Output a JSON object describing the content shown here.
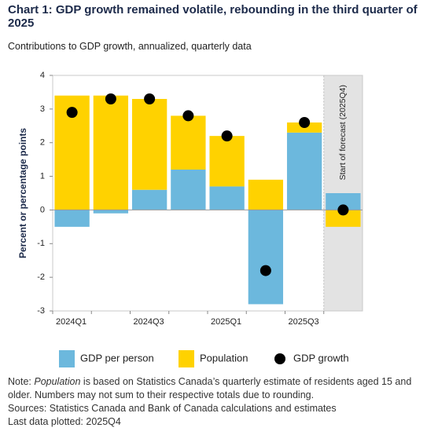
{
  "chart_data": {
    "type": "bar",
    "stacked": true,
    "title": "Chart 1: GDP growth remained volatile, rebounding in the third quarter of 2025",
    "subtitle": "Contributions to GDP growth, annualized, quarterly data",
    "y_label": "Percent or percentage points",
    "forecast_label": "Start of forecast (2025Q4)",
    "categories": [
      "2024Q1",
      null,
      "2024Q3",
      null,
      "2025Q1",
      null,
      "2025Q3",
      null
    ],
    "series": [
      {
        "name": "GDP per person",
        "color": "#6cb8dd",
        "values": [
          -0.5,
          -0.1,
          0.6,
          1.2,
          0.7,
          -2.8,
          2.3,
          0.5
        ]
      },
      {
        "name": "Population",
        "color": "#ffd200",
        "values": [
          3.4,
          3.4,
          2.7,
          1.6,
          1.5,
          0.9,
          0.3,
          -0.5
        ]
      },
      {
        "name": "GDP growth",
        "type": "scatter",
        "color": "#000000",
        "values": [
          2.9,
          3.3,
          3.3,
          2.8,
          2.2,
          -1.8,
          2.6,
          0.0
        ]
      }
    ],
    "ylim": [
      -3,
      4
    ],
    "yticks": [
      -3,
      -2,
      -1,
      0,
      1,
      2,
      3,
      4
    ],
    "note": [
      "Note: ",
      "Population",
      " is based on Statistics Canada’s quarterly estimate of residents aged 15 and older. Numbers may not sum to their respective totals due to rounding."
    ],
    "sources": "Sources: Statistics Canada and Bank of Canada calculations and estimates",
    "last_data": "Last data plotted: 2025Q4"
  }
}
